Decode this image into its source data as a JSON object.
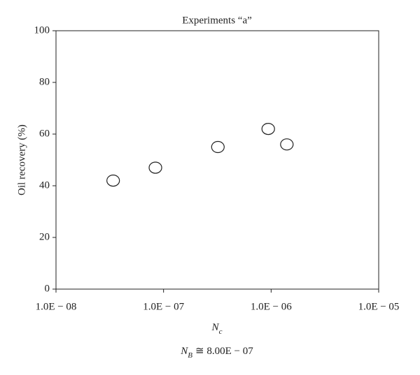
{
  "chart_data": {
    "type": "scatter",
    "title": "Experiments “a”",
    "xlabel": {
      "symbol": "N",
      "sub": "c"
    },
    "ylabel": "Oil recovery (%)",
    "annotation": {
      "symbol": "N",
      "sub": "B",
      "text": "≅ 8.00E − 07"
    },
    "x": [
      3.4e-08,
      8.4e-08,
      3.2e-07,
      9.4e-07,
      1.4e-06
    ],
    "values": [
      42,
      47,
      55,
      62,
      56
    ],
    "xscale": "log",
    "xlim": [
      1e-08,
      1e-05
    ],
    "xticks": [
      {
        "value": 1e-08,
        "label": "1.0E − 08"
      },
      {
        "value": 1e-07,
        "label": "1.0E − 07"
      },
      {
        "value": 1e-06,
        "label": "1.0E − 06"
      },
      {
        "value": 1e-05,
        "label": "1.0E − 05"
      }
    ],
    "ylim": [
      0,
      100
    ],
    "yticks": [
      0,
      20,
      40,
      60,
      80,
      100
    ],
    "grid": false,
    "color": "#222222"
  }
}
